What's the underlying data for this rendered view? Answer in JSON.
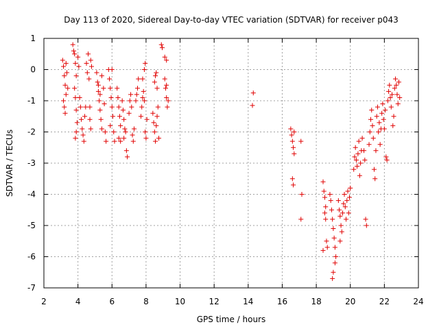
{
  "chart_data": {
    "type": "scatter",
    "title": "Day 113 of 2020, Sidereal Day-to-day VTEC variation (SDTVAR) for receiver p043",
    "xlabel": "GPS time / hours",
    "ylabel": "SDTVAR / TECUs",
    "xlim": [
      2,
      24
    ],
    "ylim": [
      -7,
      1
    ],
    "xticks": [
      2,
      4,
      6,
      8,
      10,
      12,
      14,
      16,
      18,
      20,
      22,
      24
    ],
    "yticks": [
      -7,
      -6,
      -5,
      -4,
      -3,
      -2,
      -1,
      0,
      1
    ],
    "xtick_labels": [
      "2",
      "4",
      "6",
      "8",
      "10",
      "12",
      "14",
      "16",
      "18",
      "20",
      "22",
      "24"
    ],
    "ytick_labels": [
      "-7",
      "-6",
      "-5",
      "-4",
      "-3",
      "-2",
      "-1",
      "0",
      "1"
    ],
    "grid": true,
    "marker": "+",
    "color": "#e00000",
    "series": [
      {
        "name": "SDTVAR p043",
        "points": [
          [
            3.1,
            0.3
          ],
          [
            3.15,
            0.1
          ],
          [
            3.2,
            -0.2
          ],
          [
            3.25,
            -0.5
          ],
          [
            3.3,
            -0.8
          ],
          [
            3.15,
            -1.0
          ],
          [
            3.2,
            -1.2
          ],
          [
            3.3,
            0.2
          ],
          [
            3.35,
            -0.1
          ],
          [
            3.4,
            -0.6
          ],
          [
            3.25,
            -1.4
          ],
          [
            3.7,
            0.8
          ],
          [
            3.75,
            0.6
          ],
          [
            3.8,
            0.5
          ],
          [
            3.85,
            0.2
          ],
          [
            3.9,
            -0.2
          ],
          [
            3.8,
            -0.6
          ],
          [
            3.85,
            -0.9
          ],
          [
            3.9,
            -1.3
          ],
          [
            3.95,
            -1.7
          ],
          [
            3.9,
            -2.0
          ],
          [
            3.85,
            -2.2
          ],
          [
            4.0,
            0.4
          ],
          [
            4.05,
            0.1
          ],
          [
            4.1,
            -0.9
          ],
          [
            4.15,
            -1.2
          ],
          [
            4.2,
            -1.6
          ],
          [
            4.25,
            -1.9
          ],
          [
            4.3,
            -2.1
          ],
          [
            4.35,
            -2.3
          ],
          [
            4.4,
            -1.5
          ],
          [
            4.45,
            -1.2
          ],
          [
            4.5,
            0.2
          ],
          [
            4.55,
            -0.1
          ],
          [
            4.6,
            0.5
          ],
          [
            4.65,
            -0.3
          ],
          [
            4.7,
            -1.6
          ],
          [
            4.75,
            -1.9
          ],
          [
            4.7,
            -1.2
          ],
          [
            4.8,
            0.1
          ],
          [
            4.75,
            0.3
          ],
          [
            5.1,
            -0.1
          ],
          [
            5.15,
            -0.4
          ],
          [
            5.2,
            -0.7
          ],
          [
            5.25,
            -1.0
          ],
          [
            5.3,
            -1.3
          ],
          [
            5.35,
            -1.6
          ],
          [
            5.4,
            -1.9
          ],
          [
            5.2,
            -0.5
          ],
          [
            5.3,
            -0.8
          ],
          [
            5.4,
            -0.2
          ],
          [
            5.5,
            -0.6
          ],
          [
            5.6,
            -2.0
          ],
          [
            5.65,
            -2.3
          ],
          [
            5.55,
            -1.1
          ],
          [
            5.8,
            0.0
          ],
          [
            5.85,
            -0.3
          ],
          [
            5.9,
            -0.6
          ],
          [
            5.95,
            -0.9
          ],
          [
            6.0,
            -1.2
          ],
          [
            6.05,
            -1.5
          ],
          [
            6.1,
            -2.0
          ],
          [
            6.15,
            -2.3
          ],
          [
            5.9,
            -1.8
          ],
          [
            6.0,
            0.0
          ],
          [
            6.3,
            -0.6
          ],
          [
            6.35,
            -0.9
          ],
          [
            6.4,
            -1.2
          ],
          [
            6.45,
            -1.5
          ],
          [
            6.5,
            -1.8
          ],
          [
            6.4,
            -2.2
          ],
          [
            6.5,
            -2.3
          ],
          [
            6.6,
            -1.0
          ],
          [
            6.65,
            -1.3
          ],
          [
            6.7,
            -1.6
          ],
          [
            6.7,
            -2.2
          ],
          [
            6.8,
            -2.0
          ],
          [
            6.85,
            -2.6
          ],
          [
            6.9,
            -2.8
          ],
          [
            6.75,
            -1.9
          ],
          [
            7.0,
            -1.4
          ],
          [
            7.05,
            -1.0
          ],
          [
            7.1,
            -0.8
          ],
          [
            7.15,
            -1.2
          ],
          [
            7.2,
            -2.1
          ],
          [
            7.25,
            -2.3
          ],
          [
            7.3,
            -1.9
          ],
          [
            7.4,
            -1.0
          ],
          [
            7.45,
            -0.8
          ],
          [
            7.5,
            -0.6
          ],
          [
            7.55,
            -0.3
          ],
          [
            7.7,
            -1.5
          ],
          [
            7.75,
            -1.2
          ],
          [
            7.8,
            -0.9
          ],
          [
            7.85,
            -0.7
          ],
          [
            7.9,
            -1.0
          ],
          [
            7.95,
            -2.0
          ],
          [
            8.0,
            -2.2
          ],
          [
            8.05,
            -1.6
          ],
          [
            7.8,
            -0.3
          ],
          [
            7.9,
            0.0
          ],
          [
            7.95,
            0.2
          ],
          [
            8.4,
            -1.4
          ],
          [
            8.45,
            -1.7
          ],
          [
            8.5,
            -2.0
          ],
          [
            8.55,
            -2.3
          ],
          [
            8.6,
            -1.8
          ],
          [
            8.65,
            -1.5
          ],
          [
            8.5,
            -0.4
          ],
          [
            8.55,
            -0.2
          ],
          [
            8.6,
            -0.1
          ],
          [
            8.7,
            -1.2
          ],
          [
            8.75,
            -2.2
          ],
          [
            8.65,
            -0.6
          ],
          [
            8.9,
            0.8
          ],
          [
            8.95,
            0.7
          ],
          [
            9.1,
            -0.3
          ],
          [
            9.15,
            -0.6
          ],
          [
            9.2,
            -0.9
          ],
          [
            9.25,
            -1.2
          ],
          [
            9.1,
            0.4
          ],
          [
            9.2,
            0.3
          ],
          [
            9.3,
            -1.0
          ],
          [
            9.2,
            -0.5
          ],
          [
            14.3,
            -0.75
          ],
          [
            14.25,
            -1.15
          ],
          [
            16.5,
            -1.9
          ],
          [
            16.55,
            -2.1
          ],
          [
            16.6,
            -2.3
          ],
          [
            16.65,
            -2.5
          ],
          [
            16.7,
            -2.7
          ],
          [
            16.6,
            -3.5
          ],
          [
            16.65,
            -3.7
          ],
          [
            16.7,
            -2.0
          ],
          [
            17.1,
            -2.3
          ],
          [
            17.15,
            -4.0
          ],
          [
            17.1,
            -4.8
          ],
          [
            18.4,
            -3.6
          ],
          [
            18.45,
            -3.9
          ],
          [
            18.5,
            -4.1
          ],
          [
            18.55,
            -4.4
          ],
          [
            18.6,
            -5.5
          ],
          [
            18.65,
            -5.7
          ],
          [
            18.4,
            -5.8
          ],
          [
            18.5,
            -4.6
          ],
          [
            18.55,
            -4.8
          ],
          [
            18.8,
            -4.0
          ],
          [
            18.85,
            -4.2
          ],
          [
            18.9,
            -4.5
          ],
          [
            18.95,
            -4.8
          ],
          [
            19.0,
            -5.1
          ],
          [
            19.05,
            -5.4
          ],
          [
            19.1,
            -5.7
          ],
          [
            19.0,
            -6.5
          ],
          [
            18.95,
            -6.7
          ],
          [
            19.1,
            -6.2
          ],
          [
            19.15,
            -6.0
          ],
          [
            19.3,
            -4.2
          ],
          [
            19.35,
            -4.5
          ],
          [
            19.4,
            -4.7
          ],
          [
            19.45,
            -5.0
          ],
          [
            19.5,
            -5.2
          ],
          [
            19.55,
            -4.6
          ],
          [
            19.6,
            -4.3
          ],
          [
            19.65,
            -4.0
          ],
          [
            19.7,
            -4.4
          ],
          [
            19.75,
            -4.8
          ],
          [
            19.8,
            -4.2
          ],
          [
            19.85,
            -3.9
          ],
          [
            19.9,
            -4.6
          ],
          [
            19.95,
            -4.1
          ],
          [
            20.0,
            -3.8
          ],
          [
            19.4,
            -5.5
          ],
          [
            20.2,
            -3.2
          ],
          [
            20.25,
            -2.8
          ],
          [
            20.3,
            -2.5
          ],
          [
            20.35,
            -2.9
          ],
          [
            20.4,
            -3.1
          ],
          [
            20.45,
            -2.7
          ],
          [
            20.5,
            -2.3
          ],
          [
            20.55,
            -3.4
          ],
          [
            20.6,
            -3.0
          ],
          [
            20.65,
            -2.6
          ],
          [
            20.7,
            -2.2
          ],
          [
            20.8,
            -2.6
          ],
          [
            20.85,
            -2.9
          ],
          [
            20.9,
            -4.8
          ],
          [
            20.95,
            -5.0
          ],
          [
            21.1,
            -2.4
          ],
          [
            21.15,
            -2.0
          ],
          [
            21.2,
            -1.6
          ],
          [
            21.25,
            -1.3
          ],
          [
            21.3,
            -1.8
          ],
          [
            21.35,
            -2.2
          ],
          [
            21.4,
            -3.2
          ],
          [
            21.45,
            -3.5
          ],
          [
            21.5,
            -2.6
          ],
          [
            21.55,
            -1.5
          ],
          [
            21.6,
            -1.2
          ],
          [
            21.65,
            -2.0
          ],
          [
            21.7,
            -1.7
          ],
          [
            21.75,
            -2.4
          ],
          [
            21.8,
            -1.9
          ],
          [
            21.85,
            -1.4
          ],
          [
            21.9,
            -1.1
          ],
          [
            21.95,
            -1.6
          ],
          [
            22.0,
            -1.9
          ],
          [
            22.05,
            -1.3
          ],
          [
            22.1,
            -2.8
          ],
          [
            22.15,
            -2.9
          ],
          [
            22.2,
            -1.0
          ],
          [
            22.25,
            -0.7
          ],
          [
            22.3,
            -0.5
          ],
          [
            22.35,
            -0.9
          ],
          [
            22.4,
            -1.2
          ],
          [
            22.45,
            -0.8
          ],
          [
            22.5,
            -1.8
          ],
          [
            22.55,
            -1.5
          ],
          [
            22.6,
            -0.6
          ],
          [
            22.65,
            -0.3
          ],
          [
            22.7,
            -0.5
          ],
          [
            22.75,
            -0.8
          ],
          [
            22.8,
            -1.1
          ],
          [
            22.85,
            -0.4
          ],
          [
            22.9,
            -0.9
          ]
        ]
      }
    ]
  }
}
